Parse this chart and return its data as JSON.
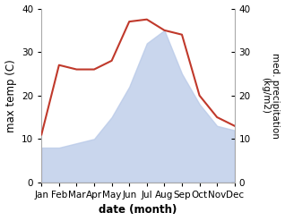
{
  "months": [
    "Jan",
    "Feb",
    "Mar",
    "Apr",
    "May",
    "Jun",
    "Jul",
    "Aug",
    "Sep",
    "Oct",
    "Nov",
    "Dec"
  ],
  "temperature": [
    11,
    27,
    26,
    26,
    28,
    37,
    37.5,
    35,
    34,
    20,
    15,
    13
  ],
  "precipitation": [
    8,
    8,
    9,
    10,
    15,
    22,
    32,
    35,
    25,
    18,
    13,
    12
  ],
  "temp_color": "#c0392b",
  "precip_color": "#b8c9e8",
  "precip_fill_alpha": 0.75,
  "ylim": [
    0,
    40
  ],
  "xlabel": "date (month)",
  "ylabel_left": "max temp (C)",
  "ylabel_right": "med. precipitation (kg/m2)",
  "background_color": "#ffffff",
  "spine_color": "#aaaaaa",
  "tick_fontsize": 7.5,
  "label_fontsize": 8.5
}
